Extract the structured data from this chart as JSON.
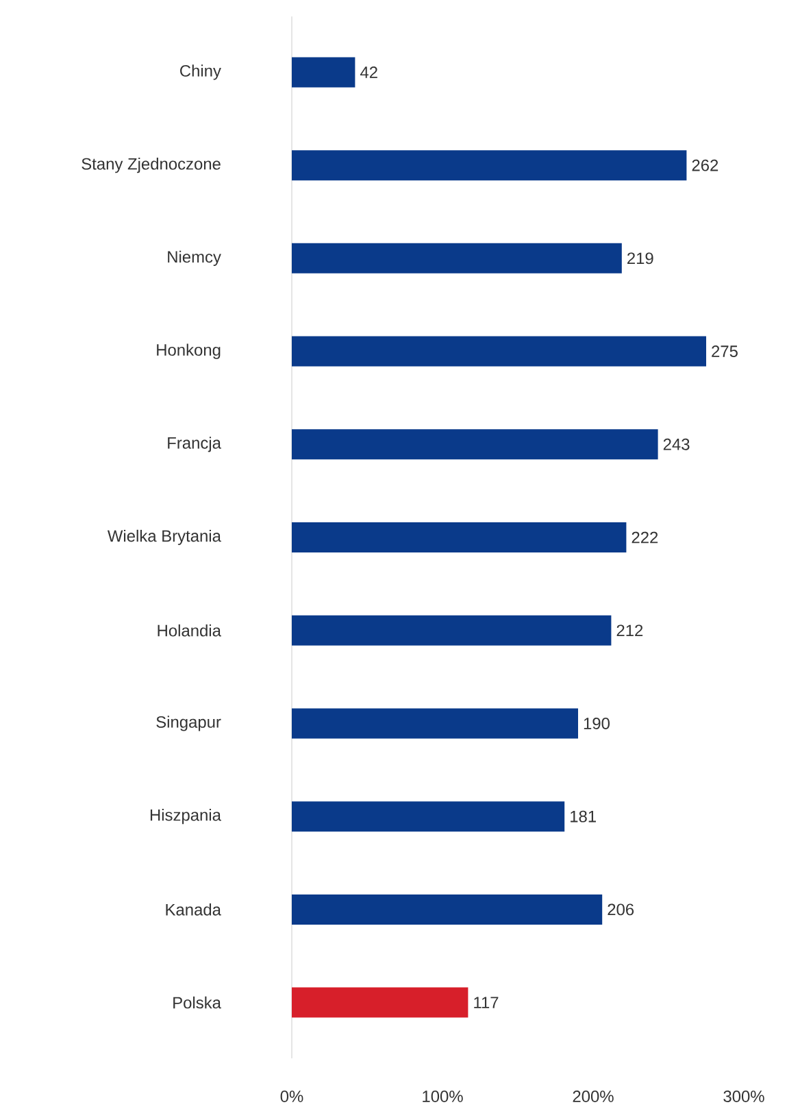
{
  "chart_data": {
    "type": "bar",
    "orientation": "horizontal",
    "categories": [
      "Chiny",
      "Stany Zjednoczone",
      "Niemcy",
      "Honkong",
      "Francja",
      "Wielka Brytania",
      "Holandia",
      "Singapur",
      "Hiszpania",
      "Kanada",
      "Polska"
    ],
    "values": [
      42,
      262,
      219,
      275,
      243,
      222,
      212,
      190,
      181,
      206,
      117
    ],
    "colors": [
      "#0a3a8a",
      "#0a3a8a",
      "#0a3a8a",
      "#0a3a8a",
      "#0a3a8a",
      "#0a3a8a",
      "#0a3a8a",
      "#0a3a8a",
      "#0a3a8a",
      "#0a3a8a",
      "#d71f2a"
    ],
    "xlim": [
      0,
      300
    ],
    "xticks": [
      {
        "value": 0,
        "label": "0%"
      },
      {
        "value": 100,
        "label": "100%"
      },
      {
        "value": 200,
        "label": "200%"
      },
      {
        "value": 300,
        "label": "300%"
      }
    ],
    "data_labels": true
  }
}
